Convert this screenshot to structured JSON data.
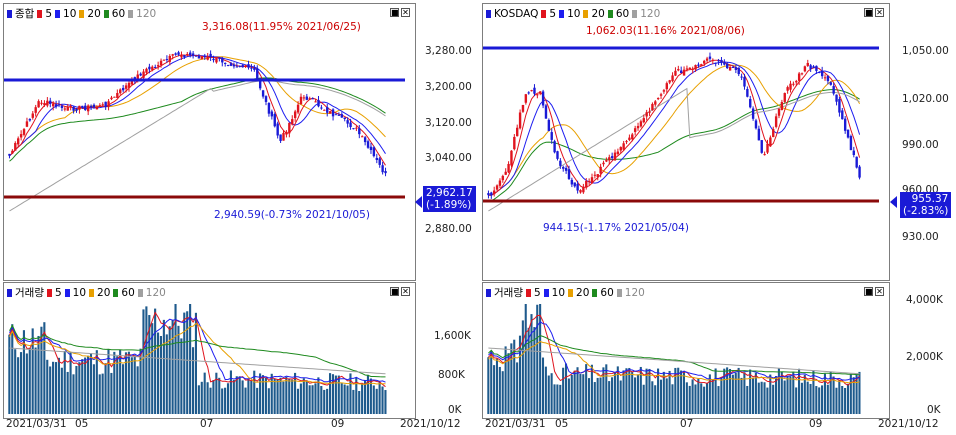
{
  "left": {
    "price_panel": {
      "legend": {
        "title": "종합",
        "ma": [
          "5",
          "10",
          "20",
          "60",
          "120"
        ]
      },
      "y_ticks": [
        "3,280.00",
        "3,200.00",
        "3,120.00",
        "3,040.00",
        "2,880.00"
      ],
      "current_price": "2,962.17",
      "current_change": "(-1.89%)",
      "high_annotation": "3,316.08(11.95% 2021/06/25)",
      "low_annotation": "2,940.59(-0.73% 2021/10/05)"
    },
    "volume_panel": {
      "legend": {
        "title": "거래량",
        "ma": [
          "5",
          "10",
          "20",
          "60",
          "120"
        ]
      },
      "y_ticks": [
        "1,600K",
        "800K",
        "0K"
      ]
    },
    "dates": [
      "2021/03/31",
      "05",
      "07",
      "09",
      "2021/10/12"
    ]
  },
  "right": {
    "price_panel": {
      "legend": {
        "title": "KOSDAQ",
        "ma": [
          "5",
          "10",
          "20",
          "60",
          "120"
        ]
      },
      "y_ticks": [
        "1,050.00",
        "1,020.00",
        "990.00",
        "960.00",
        "930.00"
      ],
      "current_price": "955.37",
      "current_change": "(-2.83%)",
      "high_annotation": "1,062.03(11.16% 2021/08/06)",
      "low_annotation": "944.15(-1.17% 2021/05/04)"
    },
    "volume_panel": {
      "legend": {
        "title": "거래량",
        "ma": [
          "5",
          "10",
          "20",
          "60",
          "120"
        ]
      },
      "y_ticks": [
        "4,000K",
        "2,000K",
        "0K"
      ]
    },
    "dates": [
      "2021/03/31",
      "05",
      "07",
      "09",
      "2021/10/12"
    ]
  },
  "colors": {
    "ma5": "#e0141e",
    "ma10": "#1e1ef0",
    "ma20": "#e8a000",
    "ma60": "#1e8a1e",
    "ma120": "#a0a0a0",
    "up_candle": "#e0141e",
    "down_candle": "#1a1ad6",
    "hline_blue": "#1a1ad6",
    "hline_red": "#8b0a0a",
    "volume_bar": "#1e5a8c"
  }
}
